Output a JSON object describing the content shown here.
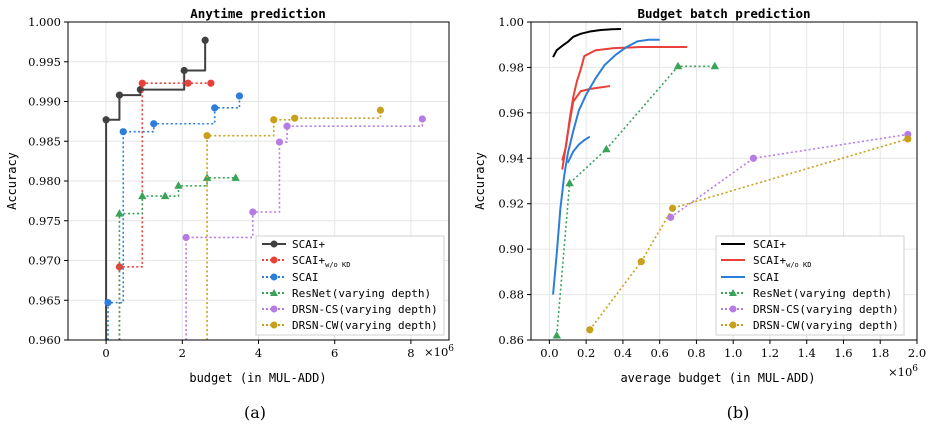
{
  "chart_data": [
    {
      "type": "line",
      "panel_label": "(a)",
      "title": "Anytime prediction",
      "xlabel": "budget (in MUL-ADD)",
      "ylabel": "Accuracy",
      "x_multiplier": "×10^6",
      "xlim": [
        -1,
        9
      ],
      "ylim": [
        0.96,
        1.0
      ],
      "xticks": [
        0,
        2,
        4,
        6,
        8
      ],
      "xtick_labels": [
        "0",
        "2",
        "4",
        "6",
        "8"
      ],
      "yticks": [
        0.96,
        0.965,
        0.97,
        0.975,
        0.98,
        0.985,
        0.99,
        0.995,
        1.0
      ],
      "ytick_labels": [
        "0.960",
        "0.965",
        "0.970",
        "0.975",
        "0.980",
        "0.985",
        "0.990",
        "0.995",
        "1.000"
      ],
      "grid": true,
      "legend_position": "bottom-right",
      "series": [
        {
          "name": "SCAI+",
          "color": "#404040",
          "style": "solid",
          "marker": "circle",
          "step": true,
          "x": [
            0.0,
            0.35,
            0.9,
            2.05,
            2.6
          ],
          "y": [
            0.9877,
            0.9908,
            0.9915,
            0.9939,
            0.9977
          ]
        },
        {
          "name": "SCAI+_{w/o KD}",
          "color": "#e8413a",
          "style": "dotted",
          "marker": "circle",
          "step": true,
          "x": [
            0.35,
            0.95,
            2.15,
            2.75
          ],
          "y": [
            0.9692,
            0.9923,
            0.9923,
            0.9923
          ]
        },
        {
          "name": "SCAI",
          "color": "#2d7ed8",
          "style": "dotted",
          "marker": "circle",
          "step": true,
          "x": [
            0.05,
            0.45,
            1.25,
            2.85,
            3.5
          ],
          "y": [
            0.9647,
            0.9862,
            0.9872,
            0.9892,
            0.9907
          ]
        },
        {
          "name": "ResNet(varying depth)",
          "color": "#3aa35a",
          "style": "dotted",
          "marker": "triangle",
          "step": true,
          "x": [
            0.35,
            0.95,
            1.55,
            1.9,
            2.65,
            3.4
          ],
          "y": [
            0.9759,
            0.9781,
            0.9781,
            0.9794,
            0.9804,
            0.9804
          ]
        },
        {
          "name": "DRSN-CS(varying depth)",
          "color": "#b77ce3",
          "style": "dotted",
          "marker": "circle",
          "step": true,
          "x": [
            2.1,
            3.85,
            4.55,
            4.75,
            8.3
          ],
          "y": [
            0.9729,
            0.9761,
            0.9849,
            0.9869,
            0.9878
          ]
        },
        {
          "name": "DRSN-CW(varying depth)",
          "color": "#c9a01a",
          "style": "dotted",
          "marker": "circle",
          "step": true,
          "x": [
            2.65,
            4.4,
            4.95,
            7.2
          ],
          "y": [
            0.9857,
            0.9877,
            0.9879,
            0.9889
          ]
        }
      ]
    },
    {
      "type": "line",
      "panel_label": "(b)",
      "title": "Budget batch prediction",
      "xlabel": "average budget (in MUL-ADD)",
      "ylabel": "Accuracy",
      "x_multiplier": "×10^6",
      "xlim": [
        -0.1,
        2.0
      ],
      "ylim": [
        0.86,
        1.0
      ],
      "xticks": [
        0.0,
        0.2,
        0.4,
        0.6,
        0.8,
        1.0,
        1.2,
        1.4,
        1.6,
        1.8,
        2.0
      ],
      "xtick_labels": [
        "0.0",
        "0.2",
        "0.4",
        "0.6",
        "0.8",
        "1.0",
        "1.2",
        "1.4",
        "1.6",
        "1.8",
        "2.0"
      ],
      "yticks": [
        0.86,
        0.88,
        0.9,
        0.92,
        0.94,
        0.96,
        0.98,
        1.0
      ],
      "ytick_labels": [
        "0.86",
        "0.88",
        "0.90",
        "0.92",
        "0.94",
        "0.96",
        "0.98",
        "1.00"
      ],
      "grid": true,
      "legend_position": "bottom-left",
      "series": [
        {
          "name": "SCAI+",
          "color": "#000000",
          "style": "solid",
          "marker": "none",
          "x": [
            0.02,
            0.04,
            0.07,
            0.1,
            0.13,
            0.17,
            0.22,
            0.28,
            0.34,
            0.39
          ],
          "y": [
            0.9845,
            0.9876,
            0.9895,
            0.9912,
            0.9935,
            0.9948,
            0.9958,
            0.9965,
            0.9968,
            0.9969
          ]
        },
        {
          "name": "SCAI+_{w/o KD}",
          "color": "#e8413a",
          "style": "solid",
          "marker": "none",
          "x": [
            0.07,
            0.09,
            0.11,
            0.13,
            0.15,
            0.17,
            0.19,
            0.25,
            0.35,
            0.5,
            0.62,
            0.75
          ],
          "y": [
            0.939,
            0.945,
            0.957,
            0.967,
            0.974,
            0.979,
            0.985,
            0.9875,
            0.9885,
            0.989,
            0.989,
            0.989
          ]
        },
        {
          "name": "SCAI+_{w/o KD}",
          "color": "#e8413a",
          "style": "solid",
          "marker": "none",
          "x": [
            0.07,
            0.1,
            0.13,
            0.17,
            0.22,
            0.28,
            0.33
          ],
          "y": [
            0.935,
            0.951,
            0.965,
            0.9695,
            0.9705,
            0.9712,
            0.9718
          ]
        },
        {
          "name": "SCAI",
          "color": "#2d7ed8",
          "style": "solid",
          "marker": "none",
          "x": [
            0.02,
            0.04,
            0.06,
            0.08,
            0.1,
            0.13,
            0.16,
            0.2,
            0.25,
            0.3,
            0.36,
            0.42,
            0.48,
            0.54,
            0.6
          ],
          "y": [
            0.88,
            0.898,
            0.918,
            0.932,
            0.942,
            0.952,
            0.961,
            0.968,
            0.975,
            0.981,
            0.9855,
            0.989,
            0.9915,
            0.9922,
            0.9922
          ]
        },
        {
          "name": "SCAI",
          "color": "#2d7ed8",
          "style": "solid",
          "marker": "none",
          "x": [
            0.1,
            0.13,
            0.16,
            0.19,
            0.22
          ],
          "y": [
            0.938,
            0.943,
            0.946,
            0.948,
            0.9495
          ]
        },
        {
          "name": "ResNet(varying depth)",
          "color": "#3aa35a",
          "style": "dotted",
          "marker": "triangle",
          "x": [
            0.04,
            0.11,
            0.31,
            0.7,
            0.9
          ],
          "y": [
            0.862,
            0.929,
            0.944,
            0.9805,
            0.9805
          ]
        },
        {
          "name": "DRSN-CS(varying depth)",
          "color": "#b77ce3",
          "style": "dotted",
          "marker": "circle",
          "x": [
            0.66,
            1.11,
            1.95
          ],
          "y": [
            0.914,
            0.94,
            0.9505
          ]
        },
        {
          "name": "DRSN-CW(varying depth)",
          "color": "#c9a01a",
          "style": "dotted",
          "marker": "circle",
          "x": [
            0.22,
            0.5,
            0.67,
            1.95
          ],
          "y": [
            0.8645,
            0.8945,
            0.918,
            0.9485
          ]
        }
      ]
    }
  ],
  "legend": {
    "a": [
      "SCAI+",
      "SCAI+",
      "SCAI",
      "ResNet(varying depth)",
      "DRSN-CS(varying depth)",
      "DRSN-CW(varying depth)"
    ],
    "b": [
      "SCAI+",
      "SCAI+",
      "SCAI",
      "ResNet(varying depth)",
      "DRSN-CS(varying depth)",
      "DRSN-CW(varying depth)"
    ],
    "subscript": "w/o KD"
  },
  "multiplier_base": "×10",
  "multiplier_exp": "6"
}
